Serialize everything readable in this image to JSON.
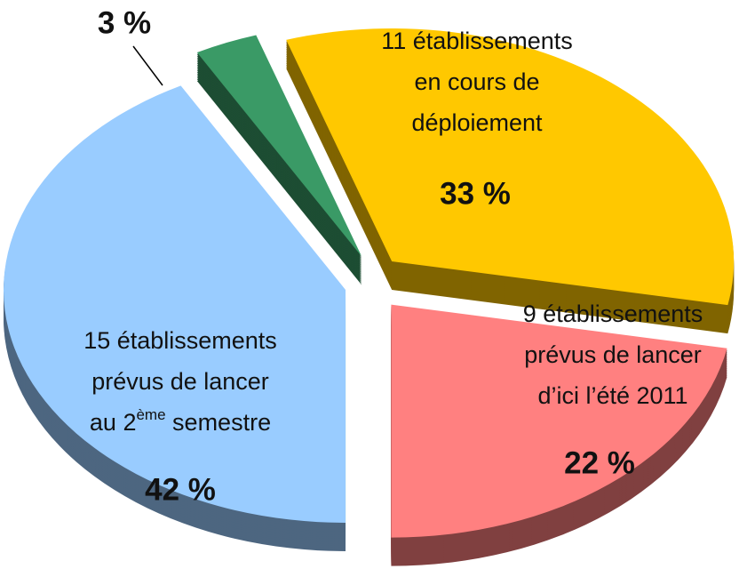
{
  "chart_data": {
    "type": "pie",
    "labels": [
      [
        "11 établissements",
        "en cours de",
        "déploiement"
      ],
      [
        "9 établissements",
        "prévus de lancer",
        "d’ici l’été 2011"
      ],
      [
        "15 établissements",
        "prévus de lancer",
        [
          {
            "text": "au 2"
          },
          {
            "text": "ème",
            "sup": true
          },
          {
            "text": " semestre"
          }
        ]
      ],
      []
    ],
    "values": [
      33,
      22,
      42,
      3
    ],
    "value_labels": [
      "33 %",
      "22 %",
      "42 %",
      "3 %"
    ],
    "colors": [
      "#ffc800",
      "#ff8080",
      "#99ccff",
      "#3a9a66"
    ]
  }
}
